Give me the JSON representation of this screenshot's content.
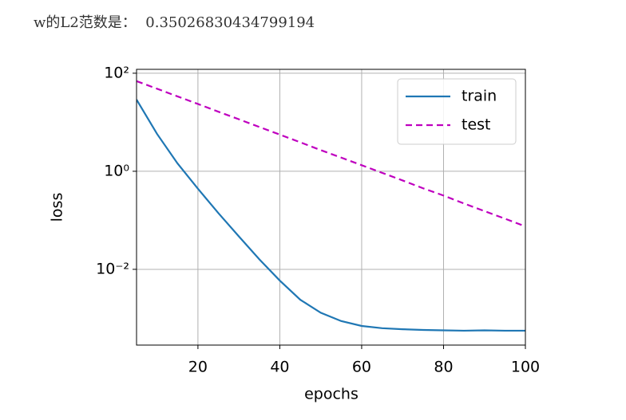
{
  "header": {
    "label": "w的L2范数是：",
    "value": 0.35026830434799194
  },
  "chart_data": {
    "type": "line",
    "xlabel": "epochs",
    "ylabel": "loss",
    "yscale": "log",
    "grid": true,
    "legend": "upper right",
    "x": [
      5,
      10,
      15,
      20,
      25,
      30,
      35,
      40,
      45,
      50,
      55,
      60,
      65,
      70,
      75,
      80,
      85,
      90,
      95,
      100
    ],
    "series": [
      {
        "name": "train",
        "color": "#1f77b4",
        "dash": false,
        "values": [
          29,
          5.8,
          1.45,
          0.44,
          0.14,
          0.047,
          0.016,
          0.0059,
          0.0024,
          0.0013,
          0.00088,
          0.0007,
          0.00063,
          0.0006,
          0.00058,
          0.00057,
          0.00056,
          0.00057,
          0.00056,
          0.00056
        ]
      },
      {
        "name": "test",
        "color": "#bf00bf",
        "dash": true,
        "values": [
          69,
          48.3,
          33.7,
          23.6,
          16.4,
          11.5,
          8.0,
          5.6,
          3.9,
          2.7,
          1.9,
          1.33,
          0.93,
          0.65,
          0.45,
          0.32,
          0.22,
          0.154,
          0.108,
          0.075
        ]
      }
    ],
    "xlim": [
      5,
      100
    ],
    "xticks": [
      20,
      40,
      60,
      80,
      100
    ],
    "ylim": [
      0.000285,
      120
    ],
    "yticks": [
      {
        "value": 100,
        "label": "10²"
      },
      {
        "value": 1,
        "label": "10⁰"
      },
      {
        "value": 0.01,
        "label": "10⁻²"
      }
    ]
  }
}
